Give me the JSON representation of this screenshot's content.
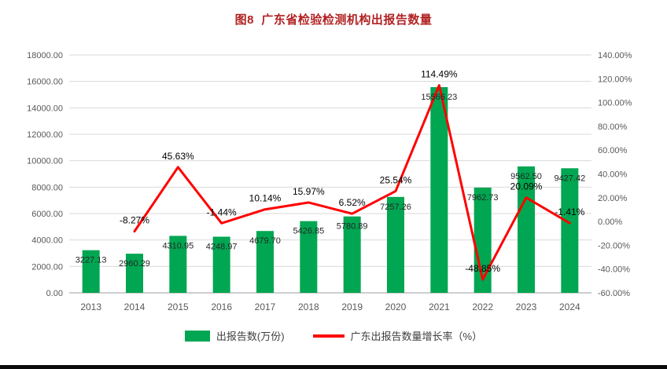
{
  "title": {
    "text": "图8  广东省检验检测机构出报告数量",
    "color": "#B22222"
  },
  "chart_data": {
    "type": "combo",
    "title": "图8  广东省检验检测机构出报告数量",
    "categories": [
      "2013",
      "2014",
      "2015",
      "2016",
      "2017",
      "2018",
      "2019",
      "2020",
      "2021",
      "2022",
      "2023",
      "2024"
    ],
    "series": [
      {
        "name": "出报告数(万份)",
        "type": "bar",
        "color": "#00A651",
        "axis": "left",
        "values": [
          3227.13,
          2960.29,
          4310.95,
          4248.97,
          4679.7,
          5426.85,
          5780.89,
          7257.26,
          15566.23,
          7962.73,
          9562.5,
          9427.42
        ],
        "labels": [
          "3227.13",
          "2960.29",
          "4310.95",
          "4248.97",
          "4679.70",
          "5426.85",
          "5780.89",
          "7257.26",
          "15566.23",
          "7962.73",
          "9562.50",
          "9427.42"
        ]
      },
      {
        "name": "广东出报告数量增长率（%）",
        "type": "line",
        "color": "#FF0000",
        "axis": "right",
        "values": [
          null,
          -8.27,
          45.63,
          -1.44,
          10.14,
          15.97,
          6.52,
          25.54,
          114.49,
          -48.85,
          20.09,
          -1.41
        ],
        "labels": [
          null,
          "-8.27%",
          "45.63%",
          "-1.44%",
          "10.14%",
          "15.97%",
          "6.52%",
          "25.54%",
          "114.49%",
          "-48.85%",
          "20.09%",
          "-1.41%"
        ]
      }
    ],
    "left_axis": {
      "min": 0,
      "max": 18000,
      "step": 2000,
      "tick_labels": [
        "18000.00",
        "16000.00",
        "14000.00",
        "12000.00",
        "10000.00",
        "8000.00",
        "6000.00",
        "4000.00",
        "2000.00",
        "0.00"
      ]
    },
    "right_axis": {
      "min": -60,
      "max": 140,
      "step": 20,
      "tick_labels": [
        "140.00%",
        "120.00%",
        "100.00%",
        "80.00%",
        "60.00%",
        "40.00%",
        "20.00%",
        "0.00%",
        "-20.00%",
        "-40.00%",
        "-60.00%"
      ]
    },
    "grid": true,
    "legend_position": "bottom"
  }
}
